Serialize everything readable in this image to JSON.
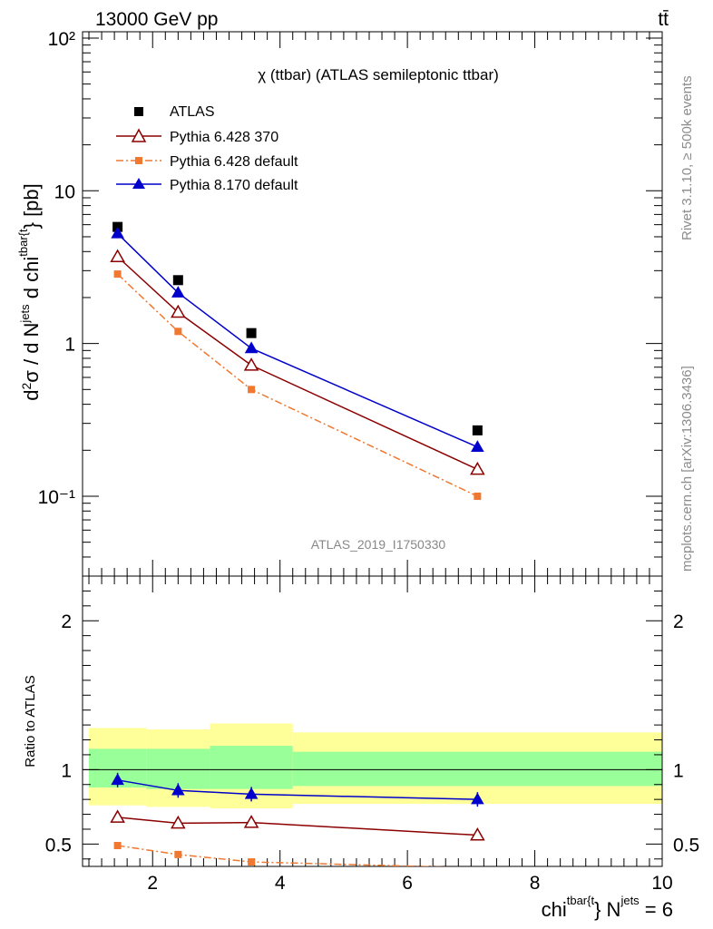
{
  "header": {
    "left": "13000 GeV pp",
    "right": "tt̄"
  },
  "side_labels": {
    "rivet": "Rivet 3.1.10, ≥ 500k events",
    "mcplots": "mcplots.cern.ch [arXiv:1306.3436]"
  },
  "colors": {
    "atlas": "#000000",
    "py6_370": "#8b0000",
    "py6_default": "#f07830",
    "py8": "#0000cc",
    "band_green": "#99ff99",
    "band_yellow": "#ffff99"
  },
  "chart_data": {
    "type": "line",
    "title": "χ (ttbar) (ATLAS semileptonic ttbar)",
    "watermark": "ATLAS_2019_I1750330",
    "ylabel_main": "d²σ / d N^jets d chi^ttbar{t} [pb]",
    "ylabel_ratio": "Ratio to ATLAS",
    "xlabel": "chi^tbar{t} N^jets = 6",
    "xlim": [
      0.9,
      10.0
    ],
    "ylim_main": [
      0.03,
      110
    ],
    "yscale_main": "log",
    "ylim_ratio": [
      0.35,
      2.3
    ],
    "x_ticks": [
      "2",
      "4",
      "6",
      "8",
      "10"
    ],
    "y_ticks_main": [
      "10⁻¹",
      "1",
      "10",
      "10²"
    ],
    "y_ticks_ratio": [
      "0.5",
      "1",
      "2"
    ],
    "legend_position": "top-left",
    "x": [
      1.45,
      2.4,
      3.55,
      7.1
    ],
    "series": [
      {
        "name": "ATLAS",
        "values": [
          5.8,
          2.6,
          1.17,
          0.27
        ],
        "style": "square"
      },
      {
        "name": "Pythia 6.428 370",
        "values": [
          3.7,
          1.6,
          0.72,
          0.15
        ],
        "style": "open-triangle"
      },
      {
        "name": "Pythia 6.428 default",
        "values": [
          2.85,
          1.2,
          0.5,
          0.1
        ],
        "style": "dashdot-square"
      },
      {
        "name": "Pythia 8.170 default",
        "values": [
          5.25,
          2.15,
          0.93,
          0.21
        ],
        "style": "filled-triangle"
      }
    ],
    "ratio": {
      "x": [
        1.45,
        2.4,
        3.55,
        7.1
      ],
      "Pythia 6.428 370": [
        0.68,
        0.64,
        0.645,
        0.56
      ],
      "Pythia 6.428 default": [
        0.49,
        0.43,
        0.38,
        0.34
      ],
      "Pythia 8.170 default": [
        0.93,
        0.86,
        0.835,
        0.8
      ],
      "bands": [
        {
          "x0": 1.0,
          "x1": 1.9,
          "green": [
            0.88,
            1.14
          ],
          "yellow": [
            0.76,
            1.28
          ]
        },
        {
          "x0": 1.9,
          "x1": 2.9,
          "green": [
            0.87,
            1.14
          ],
          "yellow": [
            0.75,
            1.27
          ]
        },
        {
          "x0": 2.9,
          "x1": 4.2,
          "green": [
            0.87,
            1.16
          ],
          "yellow": [
            0.74,
            1.31
          ]
        },
        {
          "x0": 4.2,
          "x1": 10.0,
          "green": [
            0.89,
            1.12
          ],
          "yellow": [
            0.77,
            1.25
          ]
        }
      ]
    }
  }
}
